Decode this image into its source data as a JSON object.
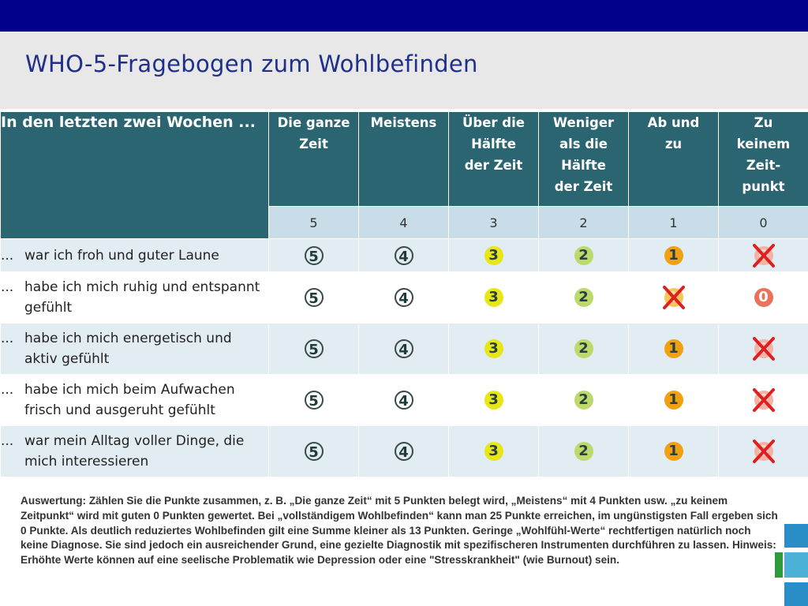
{
  "title": "WHO-5-Fragebogen zum Wohlbefinden",
  "header": {
    "question_label": "In den letzten zwei Wochen ...",
    "columns": [
      {
        "label": "Die ganze Zeit",
        "score": "5"
      },
      {
        "label": "Meistens",
        "score": "4"
      },
      {
        "label": "Über die Hälfte der Zeit",
        "score": "3"
      },
      {
        "label": "Weniger als die Hälfte der Zeit",
        "score": "2"
      },
      {
        "label": "Ab und zu",
        "score": "1"
      },
      {
        "label": "Zu keinem Zeit-punkt",
        "score": "0"
      }
    ]
  },
  "rows": [
    {
      "prefix": "...",
      "text": "war ich froh und guter Laune",
      "options": [
        "5",
        "4",
        "3",
        "2",
        "1",
        "0"
      ],
      "crossed": "0"
    },
    {
      "prefix": "...",
      "text": "habe ich mich ruhig und entspannt gefühlt",
      "options": [
        "5",
        "4",
        "3",
        "2",
        "1",
        "0"
      ],
      "crossed": "1"
    },
    {
      "prefix": "...",
      "text": "habe ich mich energetisch und aktiv gefühlt",
      "options": [
        "5",
        "4",
        "3",
        "2",
        "1",
        "0"
      ],
      "crossed": "0"
    },
    {
      "prefix": "...",
      "text": "habe ich mich beim Aufwachen frisch und ausgeruht gefühlt",
      "options": [
        "5",
        "4",
        "3",
        "2",
        "1",
        "0"
      ],
      "crossed": "0"
    },
    {
      "prefix": "...",
      "text": "war mein Alltag voller Dinge, die mich interessieren",
      "options": [
        "5",
        "4",
        "3",
        "2",
        "1",
        "0"
      ],
      "crossed": "0"
    }
  ],
  "note": "Auswertung: Zählen Sie die Punkte zusammen, z. B. „Die ganze Zeit“ mit 5 Punkten belegt wird, „Meistens“ mit 4 Punkten usw. „zu keinem Zeitpunkt“ wird mit guten 0 Punkten gewertet. Bei „vollständigem Wohlbefinden“ kann man 25 Punkte erreichen, im ungünstigsten Fall ergeben sich 0 Punkte. Als deutlich reduziertes Wohlbefinden gilt eine Summe kleiner als 13 Punkten. Geringe „Wohlfühl-Werte“ rechtfertigen natürlich noch keine Diagnose. Sie sind jedoch ein ausreichender Grund, eine gezielte Diagnostik mit spezifischeren Instrumenten durchführen zu lassen. Hinweis: Erhöhte Werte können auf eine seelische Problematik wie Depression oder eine \"Stresskrankheit\" (wie Burnout) sein.",
  "colors": {
    "topbar": "#00008b",
    "header": "#2b6572",
    "score_row": "#c9dde9",
    "stripe": "#e2ecf3",
    "cross": "#e02020"
  }
}
